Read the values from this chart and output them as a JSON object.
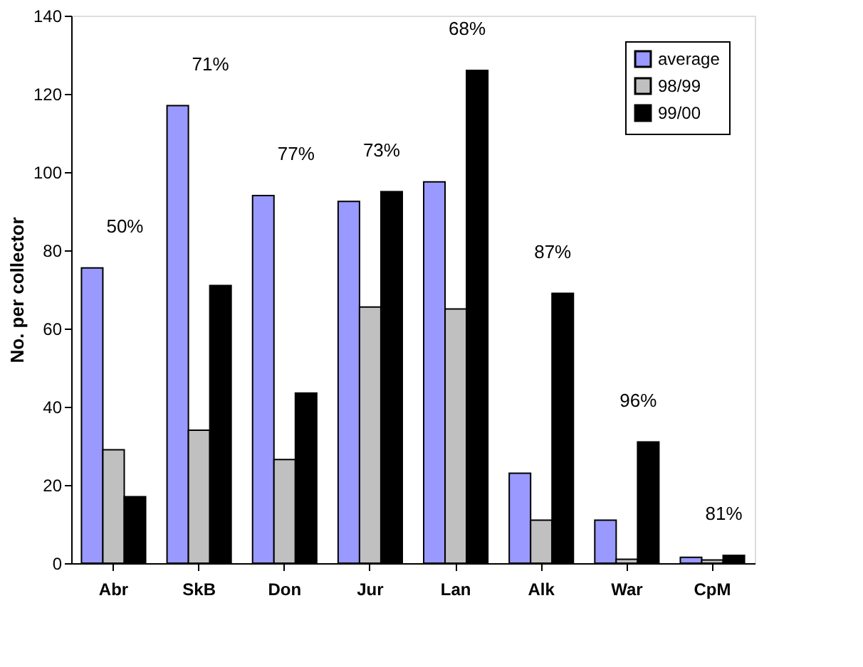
{
  "chart_data": {
    "type": "bar",
    "ylabel": "No. per collector",
    "categories": [
      "Abr",
      "SkB",
      "Don",
      "Jur",
      "Lan",
      "Alk",
      "War",
      "CpM"
    ],
    "series": [
      {
        "name": "average",
        "color": "#9999ff",
        "values": [
          75.5,
          117,
          94,
          92.5,
          97.5,
          23,
          11,
          1.5
        ]
      },
      {
        "name": "98/99",
        "color": "#c0c0c0",
        "values": [
          29,
          34,
          26.5,
          65.5,
          65,
          11,
          1,
          0.8
        ]
      },
      {
        "name": "99/00",
        "color": "#000000",
        "values": [
          17,
          71,
          43.5,
          95,
          126,
          69,
          31,
          2
        ]
      }
    ],
    "ylim": [
      0,
      140
    ],
    "yticks": [
      0,
      20,
      40,
      60,
      80,
      100,
      120,
      140
    ],
    "grid": false,
    "legend": "top right",
    "annotations": [
      "50%",
      "71%",
      "77%",
      "73%",
      "68%",
      "87%",
      "96%",
      "81%"
    ]
  }
}
